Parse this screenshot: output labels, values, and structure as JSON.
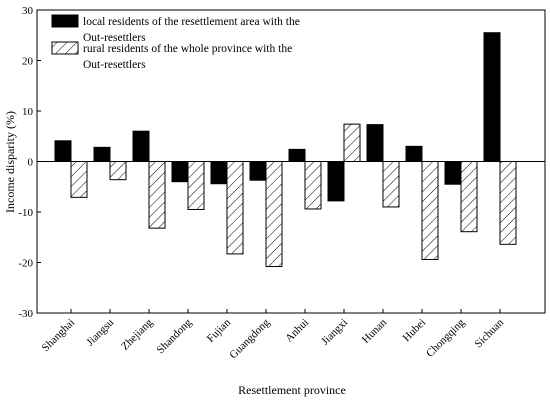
{
  "chart_data": {
    "type": "bar",
    "xlabel": "Resettlement province",
    "ylabel": "Income disparity (%)",
    "ylim": [
      -30,
      30
    ],
    "yticks": [
      -30,
      -20,
      -10,
      0,
      10,
      20,
      30
    ],
    "grid": false,
    "legend_position": "top-left",
    "categories": [
      "Shanghai",
      "Jiangsu",
      "Zhejiang",
      "Shandong",
      "Fujian",
      "Guangdong",
      "Anhui",
      "Jiangxi",
      "Hunan",
      "Hubei",
      "Chongqing",
      "Sichuan"
    ],
    "series": [
      {
        "name_lines": [
          "local residents of the resettlement area with the",
          "Out-resettlers"
        ],
        "pattern": "solid",
        "color": "#000000",
        "values": [
          4.1,
          2.8,
          6.0,
          -4.0,
          -4.4,
          -3.7,
          2.4,
          -7.8,
          7.3,
          3.0,
          -4.5,
          25.5
        ]
      },
      {
        "name_lines": [
          "rural residents of the whole province with the",
          "Out-resettlers"
        ],
        "pattern": "hatched",
        "color": "#000000",
        "values": [
          -7.1,
          -3.6,
          -13.2,
          -9.5,
          -18.3,
          -20.8,
          -9.4,
          7.4,
          -9.0,
          -19.4,
          -13.9,
          -16.4
        ]
      }
    ]
  }
}
